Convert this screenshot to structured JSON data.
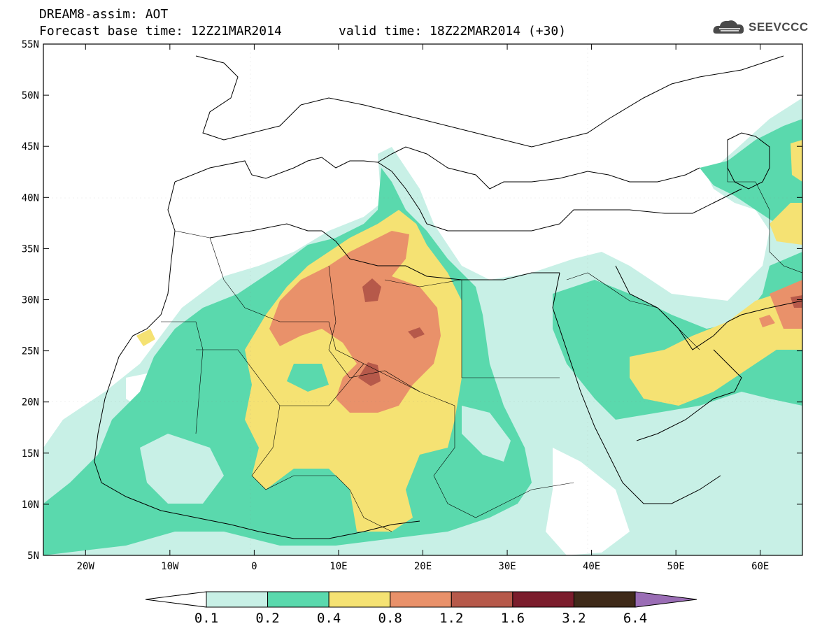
{
  "header": {
    "line1": "DREAM8-assim: AOT",
    "line2_left": "Forecast base time: 12Z21MAR2014",
    "line2_right": "valid time: 18Z22MAR2014 (+30)"
  },
  "logo": {
    "text": "SEEVCCC",
    "icon": "cloud-icon"
  },
  "map": {
    "lon_range": [
      -25,
      65
    ],
    "lat_range": [
      5,
      55
    ],
    "lat_ticks": [
      "5N",
      "10N",
      "15N",
      "20N",
      "25N",
      "30N",
      "35N",
      "40N",
      "45N",
      "50N",
      "55N"
    ],
    "lon_ticks": [
      "20W",
      "10W",
      "0",
      "10E",
      "20E",
      "30E",
      "40E",
      "50E",
      "60E"
    ]
  },
  "colorbar": {
    "labels": [
      "0.1",
      "0.2",
      "0.4",
      "0.8",
      "1.2",
      "1.6",
      "3.2",
      "6.4"
    ],
    "colors": [
      "#c8f0e6",
      "#5ad9ad",
      "#f5e273",
      "#e9916a",
      "#b6594a",
      "#7b1d2c",
      "#3f2a19"
    ],
    "under_color": "#ffffff",
    "over_color": "#9a6db5"
  },
  "palette": {
    "c1": "#c8f0e6",
    "c2": "#5ad9ad",
    "c3": "#f5e273",
    "c4": "#e9916a",
    "c5": "#b6594a"
  }
}
